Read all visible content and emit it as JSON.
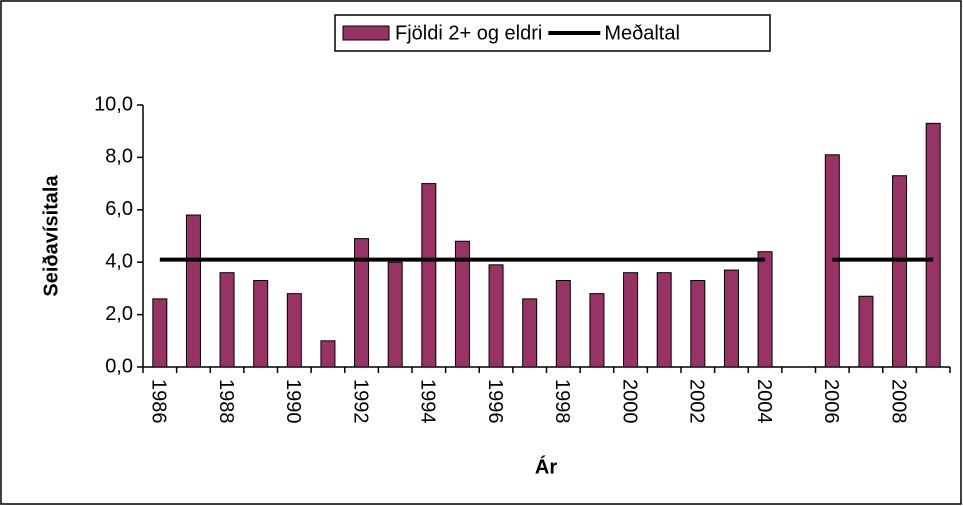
{
  "chart_data": {
    "type": "bar",
    "x_label": "Ár",
    "y_label": "Seiðavísitala",
    "categories": [
      "1986",
      null,
      "1988",
      null,
      "1990",
      null,
      "1992",
      null,
      "1994",
      null,
      "1996",
      null,
      "1998",
      null,
      "2000",
      null,
      "2002",
      null,
      "2004",
      null,
      "2006",
      null,
      "2008",
      null
    ],
    "series": [
      {
        "name": "Fjöldi 2+ og eldri",
        "type": "bar",
        "color": "#993366",
        "values": [
          2.6,
          5.8,
          3.6,
          3.3,
          2.8,
          1.0,
          4.9,
          4.0,
          7.0,
          4.8,
          3.9,
          2.6,
          3.3,
          2.8,
          3.6,
          3.6,
          3.3,
          3.7,
          4.4,
          null,
          8.1,
          2.7,
          7.3,
          9.3
        ]
      },
      {
        "name": "Meðaltal",
        "type": "line",
        "color": "#000000",
        "values": [
          4.1,
          4.1,
          4.1,
          4.1,
          4.1,
          4.1,
          4.1,
          4.1,
          4.1,
          4.1,
          4.1,
          4.1,
          4.1,
          4.1,
          4.1,
          4.1,
          4.1,
          4.1,
          4.1,
          null,
          4.1,
          4.1,
          4.1,
          4.1
        ]
      }
    ],
    "ylim": [
      0,
      10
    ],
    "yticks": [
      {
        "value": 0,
        "label": "0,0"
      },
      {
        "value": 2,
        "label": "2,0"
      },
      {
        "value": 4,
        "label": "4,0"
      },
      {
        "value": 6,
        "label": "6,0"
      },
      {
        "value": 8,
        "label": "8,0"
      },
      {
        "value": 10,
        "label": "10,0"
      }
    ],
    "legend": "top"
  }
}
